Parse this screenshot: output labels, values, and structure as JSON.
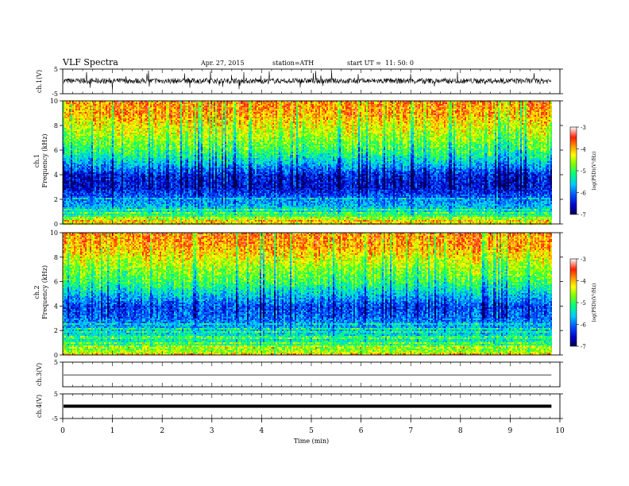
{
  "header": {
    "title": "VLF Spectra",
    "date": "Apr. 27, 2015",
    "station": "station=ATH",
    "start": "start UT =  11: 50: 0"
  },
  "chart_data": [
    {
      "type": "line",
      "ylabel": "ch.1(V)",
      "ylim": [
        -5,
        5
      ],
      "yticks": [
        -5,
        5
      ],
      "description_values": {
        "baseline_v": 0.2,
        "noise_band_v": [
          -1.2,
          2.0
        ],
        "spikes_v": [
          -3.5,
          4.5
        ]
      }
    },
    {
      "type": "heatmap",
      "ylabel": "Frequency (kHz)",
      "channel_label": "ch.1",
      "ylim": [
        0,
        10
      ],
      "yticks": [
        0,
        2,
        4,
        6,
        8,
        10
      ],
      "colorbar": {
        "label": "log(PSD)(V²/Hz)",
        "range": [
          -7,
          -3
        ],
        "ticks": [
          -7,
          -6,
          -5,
          -4,
          -3
        ]
      },
      "profile_khz_logpsd": [
        [
          0.2,
          -4.2
        ],
        [
          1.0,
          -5.4
        ],
        [
          2.0,
          -5.9
        ],
        [
          3.0,
          -6.5
        ],
        [
          4.0,
          -6.4
        ],
        [
          5.0,
          -5.6
        ],
        [
          6.0,
          -5.0
        ],
        [
          7.0,
          -4.6
        ],
        [
          8.0,
          -4.3
        ],
        [
          9.0,
          -3.9
        ],
        [
          10.0,
          -3.8
        ]
      ]
    },
    {
      "type": "heatmap",
      "ylabel": "Frequency (kHz)",
      "channel_label": "ch.2",
      "ylim": [
        0,
        10
      ],
      "yticks": [
        0,
        2,
        4,
        6,
        8,
        10
      ],
      "colorbar": {
        "label": "log(PSD)(V²/Hz)",
        "range": [
          -7,
          -3
        ],
        "ticks": [
          -7,
          -6,
          -5,
          -4,
          -3
        ]
      },
      "profile_khz_logpsd": [
        [
          0.2,
          -4.4
        ],
        [
          1.0,
          -5.2
        ],
        [
          2.0,
          -5.6
        ],
        [
          3.0,
          -6.0
        ],
        [
          4.0,
          -6.2
        ],
        [
          5.0,
          -5.6
        ],
        [
          6.0,
          -5.0
        ],
        [
          7.0,
          -4.7
        ],
        [
          8.0,
          -4.3
        ],
        [
          9.0,
          -3.9
        ],
        [
          10.0,
          -3.8
        ]
      ]
    },
    {
      "type": "line",
      "ylabel": "ch.3(V)",
      "ylim": [
        -5,
        5
      ],
      "yticks": [
        5
      ],
      "description_values": {
        "baseline_v": -0.2
      }
    },
    {
      "type": "line",
      "ylabel": "ch.4(V)",
      "ylim": [
        -5,
        5
      ],
      "yticks": [
        -5,
        5
      ],
      "description_values": {
        "baseline_v": 0.0
      }
    }
  ],
  "xaxis": {
    "label": "Time (min)",
    "range": [
      0,
      10
    ],
    "ticks": [
      0,
      1,
      2,
      3,
      4,
      5,
      6,
      7,
      8,
      9,
      10
    ],
    "data_end_min": 9.83
  }
}
